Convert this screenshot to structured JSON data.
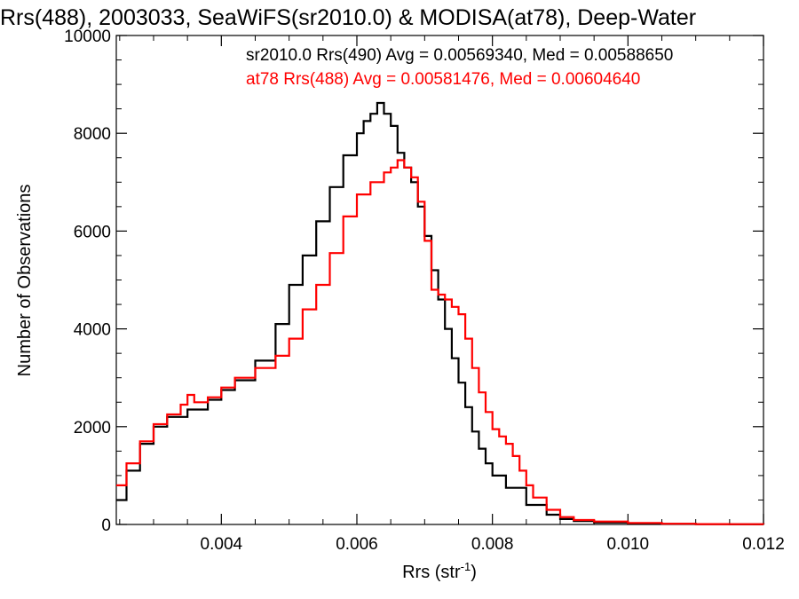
{
  "chart_data": {
    "type": "line",
    "title": "Rrs(488), 2003033, SeaWiFS(sr2010.0) & MODISA(at78), Deep-Water",
    "xlabel": "Rrs (str",
    "xlabel_sup": "-1",
    "xlabel_end": ")",
    "ylabel": "Number of Observations",
    "xlim": [
      0.00245,
      0.012
    ],
    "ylim": [
      0,
      10000
    ],
    "xticks": [
      0.004,
      0.006,
      0.008,
      0.01,
      0.012
    ],
    "xtick_labels": [
      "0.004",
      "0.006",
      "0.008",
      "0.010",
      "0.012"
    ],
    "yticks": [
      0,
      2000,
      4000,
      6000,
      8000,
      10000
    ],
    "ytick_labels": [
      "0",
      "2000",
      "4000",
      "6000",
      "8000",
      "10000"
    ],
    "grid": false,
    "legend_placement": "top-right",
    "series": [
      {
        "name": "sr2010.0 Rrs(490) Avg = 0.00569340, Med = 0.00588650",
        "color": "#000000",
        "x": [
          0.00245,
          0.0026,
          0.0028,
          0.003,
          0.0032,
          0.0035,
          0.0038,
          0.004,
          0.0042,
          0.0045,
          0.0048,
          0.005,
          0.0052,
          0.0054,
          0.0056,
          0.0058,
          0.006,
          0.0061,
          0.0062,
          0.0063,
          0.0064,
          0.0065,
          0.0066,
          0.0067,
          0.0068,
          0.0069,
          0.007,
          0.0071,
          0.0072,
          0.0073,
          0.0074,
          0.0075,
          0.0076,
          0.0077,
          0.0078,
          0.0079,
          0.008,
          0.0082,
          0.0085,
          0.0088,
          0.009,
          0.0092,
          0.0095,
          0.01,
          0.0105,
          0.011,
          0.0115,
          0.012
        ],
        "y": [
          500,
          1100,
          1650,
          2000,
          2200,
          2350,
          2550,
          2750,
          2950,
          3350,
          4100,
          4900,
          5500,
          6200,
          6900,
          7550,
          8000,
          8250,
          8400,
          8620,
          8400,
          8150,
          7600,
          7300,
          7000,
          6500,
          5900,
          5200,
          4600,
          4000,
          3400,
          2900,
          2400,
          1900,
          1550,
          1250,
          1000,
          750,
          400,
          200,
          110,
          70,
          40,
          20,
          10,
          5,
          3,
          2
        ]
      },
      {
        "name": "at78 Rrs(488) Avg = 0.00581476, Med = 0.00604640",
        "color": "#ff0000",
        "x": [
          0.00245,
          0.0026,
          0.0028,
          0.003,
          0.0032,
          0.0034,
          0.0035,
          0.0036,
          0.0038,
          0.004,
          0.0042,
          0.0045,
          0.0048,
          0.005,
          0.0052,
          0.0054,
          0.0056,
          0.0058,
          0.006,
          0.0062,
          0.0064,
          0.0065,
          0.0066,
          0.0067,
          0.0068,
          0.0069,
          0.007,
          0.0071,
          0.0072,
          0.0073,
          0.0074,
          0.0075,
          0.0076,
          0.0077,
          0.0078,
          0.0079,
          0.008,
          0.0081,
          0.0082,
          0.0083,
          0.0084,
          0.0085,
          0.0086,
          0.0088,
          0.009,
          0.0092,
          0.0095,
          0.01,
          0.0105,
          0.011,
          0.0115,
          0.012
        ],
        "y": [
          800,
          1250,
          1700,
          2050,
          2250,
          2450,
          2650,
          2500,
          2600,
          2800,
          3000,
          3200,
          3450,
          3800,
          4400,
          4900,
          5550,
          6300,
          6750,
          7000,
          7200,
          7300,
          7450,
          7300,
          7100,
          6600,
          5800,
          4800,
          4700,
          4600,
          4450,
          4300,
          3800,
          3200,
          2700,
          2300,
          1950,
          1800,
          1650,
          1400,
          1100,
          800,
          550,
          300,
          150,
          90,
          60,
          30,
          15,
          8,
          5,
          3
        ]
      }
    ]
  }
}
